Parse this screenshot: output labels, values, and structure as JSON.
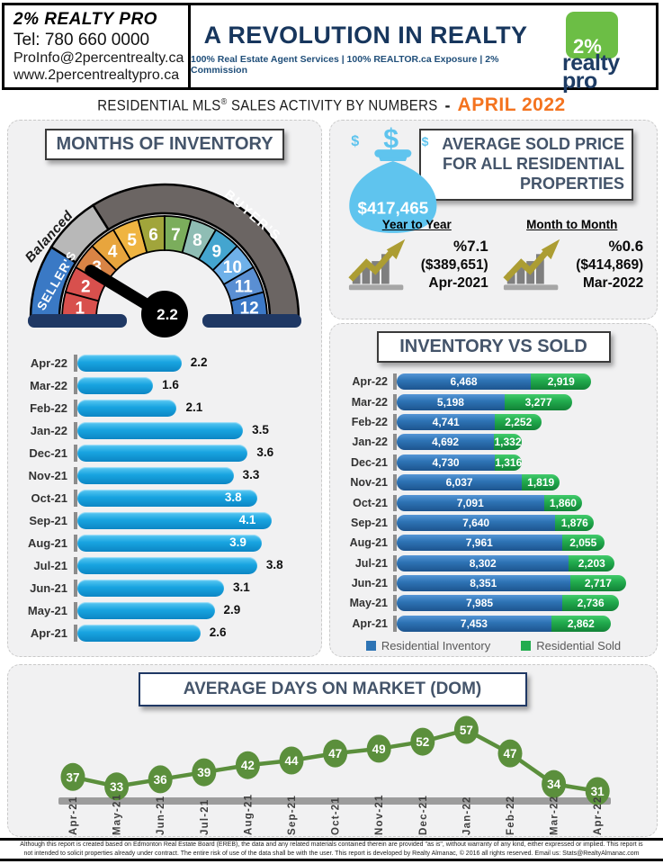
{
  "header": {
    "company": "2% REALTY PRO",
    "phone": "Tel: 780 660 0000",
    "email": "ProInfo@2percentrealty.ca",
    "website": "www.2percentrealtypro.ca",
    "headline": "A REVOLUTION IN REALTY",
    "tagline": "100% Real Estate Agent Services | 100% REALTOR.ca Exposure | 2% Commission",
    "logo": {
      "percent": "2%",
      "word1": "realty",
      "word2": "pro",
      "green": "#6CBE45",
      "navy": "#1E3C64"
    }
  },
  "subtitle": {
    "text1": "RESIDENTIAL MLS",
    "reg": "®",
    "text2": " SALES ACTIVITY BY NUMBERS",
    "dash": "-",
    "period": "APRIL 2022",
    "period_color": "#F4731F"
  },
  "avg_sold_price": {
    "title": "AVERAGE  SOLD PRICE FOR ALL RESIDENTIAL PROPERTIES",
    "value": "$417,465",
    "icons": {
      "bag": "money-bag-icon",
      "growth": "growth-chart-icon"
    },
    "bag_color": "#5FC4EE",
    "arrow_color": "#AC9D33",
    "year_to_year": {
      "label": "Year to Year",
      "percent": "%7.1",
      "amount": "($389,651)",
      "period": "Apr-2021"
    },
    "month_to_month": {
      "label": "Month to Month",
      "percent": "%0.6",
      "amount": "($414,869)",
      "period": "Mar-2022"
    }
  },
  "chart_data": [
    {
      "id": "months-of-inventory-gauge",
      "type": "gauge",
      "title": "MONTHS OF INVENTORY",
      "min": 0,
      "max": 12,
      "value": 2.2,
      "needle_color": "#000000",
      "base_bar_color": "#1F3864",
      "segments": [
        {
          "label": "1",
          "color": "#D8504D"
        },
        {
          "label": "2",
          "color": "#D8504D"
        },
        {
          "label": "3",
          "color": "#D98445"
        },
        {
          "label": "4",
          "color": "#E8A53D"
        },
        {
          "label": "5",
          "color": "#EFB441"
        },
        {
          "label": "6",
          "color": "#A1A53B"
        },
        {
          "label": "7",
          "color": "#7BAD5C"
        },
        {
          "label": "8",
          "color": "#8FBDB4"
        },
        {
          "label": "9",
          "color": "#44A5CF"
        },
        {
          "label": "10",
          "color": "#6FB1E9"
        },
        {
          "label": "11",
          "color": "#5A8FD3"
        },
        {
          "label": "12",
          "color": "#3C79C7"
        }
      ],
      "zones": [
        {
          "label": "SELLER'S",
          "from": 0,
          "to": 2.15,
          "color": "#3A79C5"
        },
        {
          "label": "Balanced",
          "from": 2.15,
          "to": 3.85,
          "color": "#B8B8B8"
        },
        {
          "label": "BUYER'S",
          "from": 3.85,
          "to": 12,
          "color": "#6B6563"
        }
      ]
    },
    {
      "id": "months-of-inventory-bars",
      "type": "bar",
      "orientation": "horizontal",
      "categories": [
        "Apr-22",
        "Mar-22",
        "Feb-22",
        "Jan-22",
        "Dec-21",
        "Nov-21",
        "Oct-21",
        "Sep-21",
        "Aug-21",
        "Jul-21",
        "Jun-21",
        "May-21",
        "Apr-21"
      ],
      "values": [
        2.2,
        1.6,
        2.1,
        3.5,
        3.6,
        3.3,
        3.8,
        4.1,
        3.9,
        3.8,
        3.1,
        2.9,
        2.6
      ],
      "label_inside": [
        false,
        false,
        false,
        false,
        false,
        false,
        true,
        true,
        true,
        false,
        false,
        false,
        false
      ],
      "bar_color": "#18A4E0",
      "xlim": [
        0,
        5
      ]
    },
    {
      "id": "inventory-vs-sold",
      "type": "bar",
      "stacked": true,
      "orientation": "horizontal",
      "title": "INVENTORY VS SOLD",
      "categories": [
        "Apr-22",
        "Mar-22",
        "Feb-22",
        "Jan-22",
        "Dec-21",
        "Nov-21",
        "Oct-21",
        "Sep-21",
        "Aug-21",
        "Jul-21",
        "Jun-21",
        "May-21",
        "Apr-21"
      ],
      "series": [
        {
          "name": "Residential Inventory",
          "color": "#2E74B5",
          "values": [
            6468,
            5198,
            4741,
            4692,
            4730,
            6037,
            7091,
            7640,
            7961,
            8302,
            8351,
            7985,
            7453
          ]
        },
        {
          "name": "Residential Sold",
          "color": "#22AC4E",
          "values": [
            2919,
            3277,
            2252,
            1332,
            1316,
            1819,
            1860,
            1876,
            2055,
            2203,
            2717,
            2736,
            2862
          ]
        }
      ],
      "xlim": [
        0,
        12100
      ],
      "legend_position": "bottom"
    },
    {
      "id": "average-dom",
      "type": "line",
      "title": "AVERAGE DAYS ON MARKET  (DOM)",
      "categories": [
        "Apr-21",
        "May-21",
        "Jun-21",
        "Jul-21",
        "Aug-21",
        "Sep-21",
        "Oct-21",
        "Nov-21",
        "Dec-21",
        "Jan-22",
        "Feb-22",
        "Mar-22",
        "Apr-22"
      ],
      "values": [
        37,
        33,
        36,
        39,
        42,
        44,
        47,
        49,
        52,
        57,
        47,
        34,
        31
      ],
      "marker_color": "#5B8F3C",
      "line_color": "#5B8F3C",
      "axis_bar_color": "#9C9C9C"
    }
  ],
  "footer": {
    "line1": "Although this report is created based on Edmonton Real Estate Board (EREB), the data and any related materials contained therein are provided \"as is\", without warranty of any kind, either expressed or implied. This report is",
    "line2": "not intended to solicit properties already under contract. The entire risk of use of the data shall be with the user. This report is developed by Realty Almanac, © 2016 all rights reserved. Email us: Stats@RealtyAlmanac.com"
  }
}
